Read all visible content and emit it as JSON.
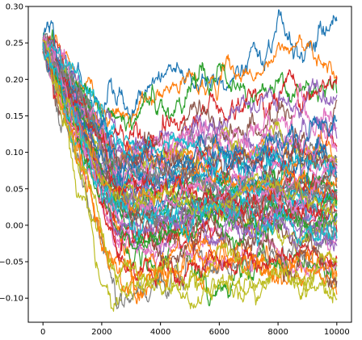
{
  "chart_data": {
    "type": "line",
    "title": "",
    "xlabel": "",
    "ylabel": "",
    "xlim": [
      -500,
      10500
    ],
    "ylim": [
      -0.133,
      0.3
    ],
    "grid": false,
    "legend": "none",
    "x_ticks": [
      0,
      2000,
      4000,
      6000,
      8000,
      10000
    ],
    "x_tick_labels": [
      "0",
      "2000",
      "4000",
      "6000",
      "8000",
      "10000"
    ],
    "y_ticks": [
      -0.1,
      -0.05,
      0.0,
      0.05,
      0.1,
      0.15,
      0.2,
      0.25,
      0.3
    ],
    "y_tick_labels": [
      "−0.10",
      "−0.05",
      "0.00",
      "0.05",
      "0.10",
      "0.15",
      "0.20",
      "0.25",
      "0.30"
    ],
    "series_shape": "noisy random-walk trajectories; all start near 0.25 at x=0, descend roughly linearly until ~x=2500, then fluctuate between about -0.10 and 0.28",
    "series_count": 60,
    "colors": [
      "#1f77b4",
      "#ff7f0e",
      "#2ca02c",
      "#d62728",
      "#9467bd",
      "#8c564b",
      "#e377c2",
      "#7f7f7f",
      "#bcbd22",
      "#17becf"
    ],
    "series": [
      {
        "x": [
          0,
          1000,
          2000,
          2500,
          3000,
          4000,
          5000,
          6000,
          7000,
          8000,
          9000,
          10000
        ],
        "values": [
          0.25,
          0.22,
          0.19,
          0.17,
          0.16,
          0.19,
          0.22,
          0.21,
          0.24,
          0.27,
          0.27,
          0.28
        ]
      },
      {
        "x": [
          0,
          1000,
          2000,
          2500,
          3000,
          4000,
          5000,
          6000,
          7000,
          8000,
          9000,
          10000
        ],
        "values": [
          0.25,
          0.22,
          0.18,
          0.15,
          0.14,
          0.17,
          0.19,
          0.2,
          0.21,
          0.23,
          0.25,
          0.23
        ]
      },
      {
        "x": [
          0,
          1000,
          2000,
          2500,
          3000,
          4000,
          5000,
          6000,
          7000,
          8000,
          9000,
          10000
        ],
        "values": [
          0.25,
          0.2,
          0.16,
          0.14,
          0.14,
          0.16,
          0.18,
          0.18,
          0.18,
          0.19,
          0.18,
          0.19
        ]
      },
      {
        "x": [
          0,
          1000,
          2000,
          2500,
          3000,
          4000,
          5000,
          6000,
          7000,
          8000,
          9000,
          10000
        ],
        "values": [
          0.25,
          0.18,
          0.12,
          0.1,
          0.11,
          0.14,
          0.16,
          0.17,
          0.17,
          0.18,
          0.19,
          0.18
        ]
      },
      {
        "x": [
          0,
          1000,
          2000,
          2500,
          3000,
          4000,
          5000,
          6000,
          7000,
          8000,
          9000,
          10000
        ],
        "values": [
          0.25,
          0.19,
          0.14,
          0.12,
          0.11,
          0.12,
          0.13,
          0.14,
          0.15,
          0.16,
          0.17,
          0.17
        ]
      },
      {
        "x": [
          0,
          1000,
          2000,
          2500,
          3000,
          4000,
          5000,
          6000,
          7000,
          8000,
          9000,
          10000
        ],
        "values": [
          0.25,
          0.17,
          0.11,
          0.09,
          0.09,
          0.11,
          0.13,
          0.15,
          0.14,
          0.13,
          0.14,
          0.15
        ]
      },
      {
        "x": [
          0,
          1000,
          2000,
          2500,
          3000,
          4000,
          5000,
          6000,
          7000,
          8000,
          9000,
          10000
        ],
        "values": [
          0.25,
          0.16,
          0.1,
          0.08,
          0.08,
          0.1,
          0.12,
          0.11,
          0.12,
          0.13,
          0.14,
          0.14
        ]
      },
      {
        "x": [
          0,
          1000,
          2000,
          2500,
          3000,
          4000,
          5000,
          6000,
          7000,
          8000,
          9000,
          10000
        ],
        "values": [
          0.25,
          0.15,
          0.08,
          0.06,
          0.07,
          0.09,
          0.1,
          0.11,
          0.1,
          0.11,
          0.12,
          0.12
        ]
      }
    ]
  }
}
